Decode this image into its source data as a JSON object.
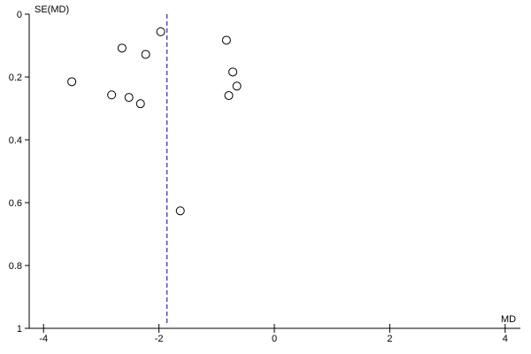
{
  "chart_data": {
    "type": "scatter",
    "title": "",
    "xlabel": "MD",
    "ylabel": "SE(MD)",
    "xlim": [
      -4.2,
      4.3
    ],
    "ylim": [
      0,
      1
    ],
    "y_reversed": true,
    "grid": false,
    "x_ticks": [
      -4,
      -2,
      0,
      2,
      4
    ],
    "x_tick_labels": [
      "-4",
      "-2",
      "0",
      "2",
      "4"
    ],
    "y_ticks": [
      0,
      0.2,
      0.4,
      0.6,
      0.8,
      1
    ],
    "y_tick_labels": [
      "0",
      "0.2",
      "0.4",
      "0.6",
      "0.8",
      "1"
    ],
    "reference_line": {
      "x": -1.86,
      "style": "dashed",
      "color": "#0000aa"
    },
    "marker": {
      "shape": "open-circle",
      "color": "#000000"
    },
    "points": [
      {
        "x": -1.97,
        "y": 0.056
      },
      {
        "x": -2.64,
        "y": 0.108
      },
      {
        "x": -2.23,
        "y": 0.128
      },
      {
        "x": -0.83,
        "y": 0.083
      },
      {
        "x": -3.51,
        "y": 0.215
      },
      {
        "x": -0.72,
        "y": 0.184
      },
      {
        "x": -0.65,
        "y": 0.229
      },
      {
        "x": -2.82,
        "y": 0.257
      },
      {
        "x": -2.52,
        "y": 0.265
      },
      {
        "x": -0.79,
        "y": 0.259
      },
      {
        "x": -2.32,
        "y": 0.285
      },
      {
        "x": -1.63,
        "y": 0.626
      }
    ]
  }
}
